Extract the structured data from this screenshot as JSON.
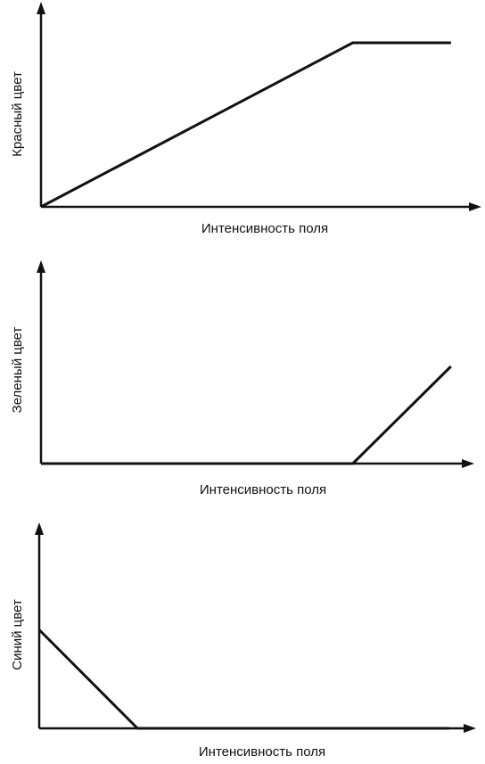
{
  "chart_data": [
    {
      "type": "line",
      "xlabel": "Интенсивность поля",
      "ylabel": "Красный цвет",
      "xlim": [
        0,
        1
      ],
      "ylim": [
        0,
        1
      ],
      "grid": false,
      "series": [
        {
          "x": [
            0,
            0.73,
            0.96
          ],
          "y": [
            0,
            0.84,
            0.84
          ]
        }
      ]
    },
    {
      "type": "line",
      "xlabel": "Интенсивность поля",
      "ylabel": "Зеленый цвет",
      "xlim": [
        0,
        1
      ],
      "ylim": [
        0,
        1
      ],
      "grid": false,
      "series": [
        {
          "x": [
            0,
            0.73,
            0.96
          ],
          "y": [
            0,
            0,
            0.5
          ]
        }
      ]
    },
    {
      "type": "line",
      "xlabel": "Интенсивность поля",
      "ylabel": "Синий цвет",
      "xlim": [
        0,
        1
      ],
      "ylim": [
        0,
        1
      ],
      "grid": false,
      "series": [
        {
          "x": [
            0,
            0.23,
            0.96
          ],
          "y": [
            0.5,
            0,
            0
          ]
        }
      ]
    }
  ],
  "colors": {
    "ink": "#111111",
    "background": "#ffffff"
  }
}
